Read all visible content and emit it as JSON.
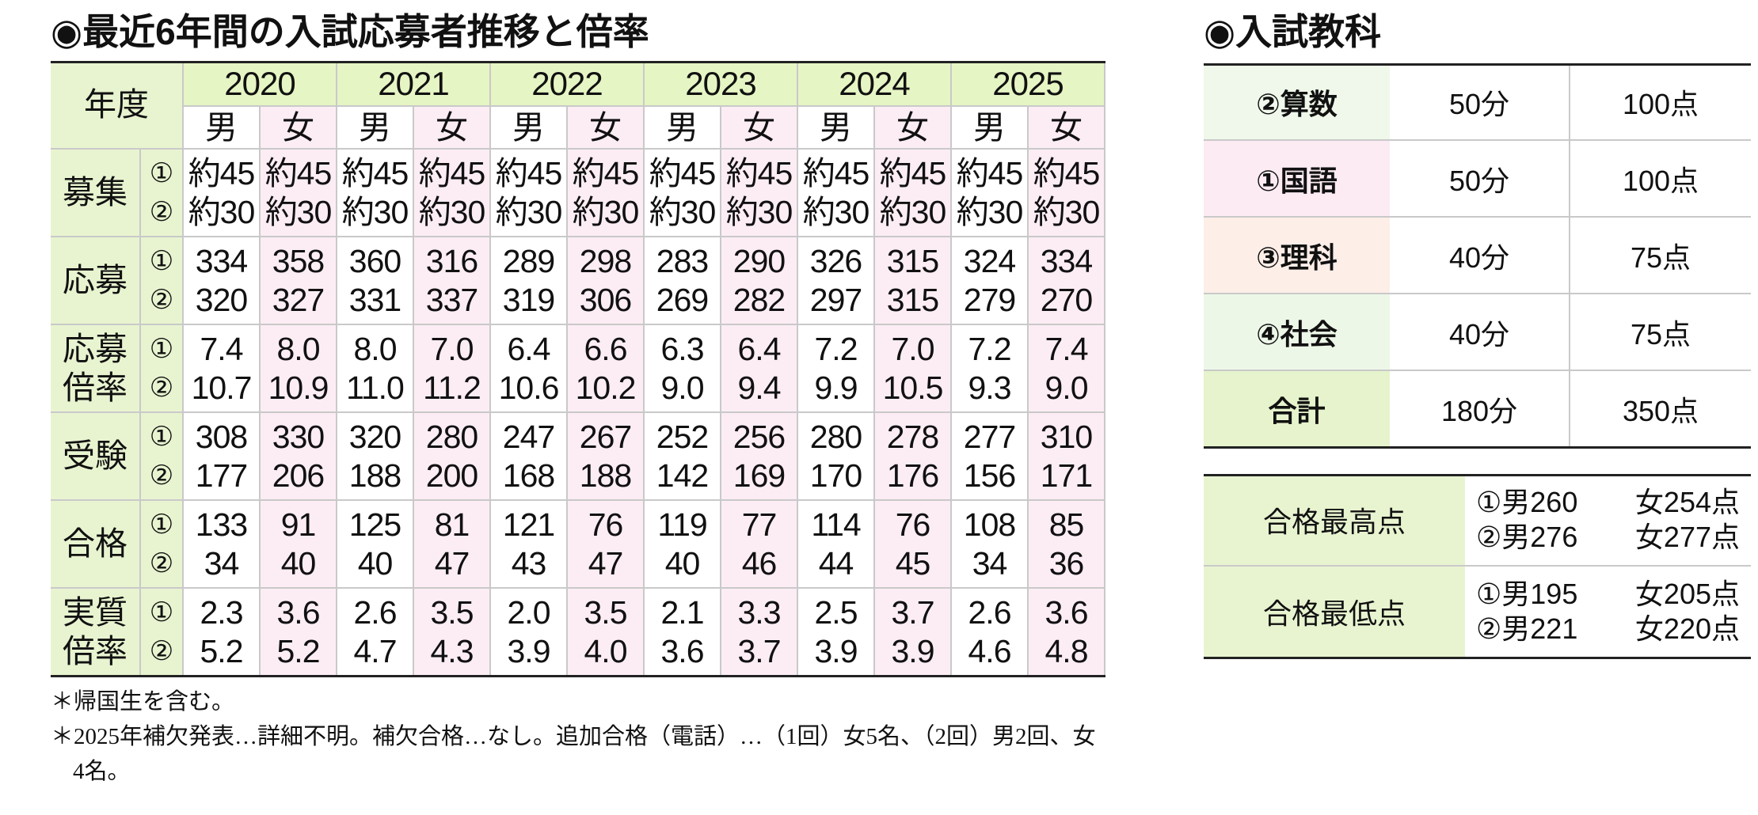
{
  "left": {
    "title": "◉最近6年間の入試応募者推移と倍率",
    "year_header": "年度",
    "years": [
      "2020",
      "2021",
      "2022",
      "2023",
      "2024",
      "2025"
    ],
    "genders": [
      "男",
      "女"
    ],
    "rounds": [
      "①",
      "②"
    ],
    "rows": [
      {
        "label": [
          "募集"
        ],
        "values": [
          [
            "約45",
            "約45",
            "約45",
            "約45",
            "約45",
            "約45",
            "約45",
            "約45",
            "約45",
            "約45",
            "約45",
            "約45"
          ],
          [
            "約30",
            "約30",
            "約30",
            "約30",
            "約30",
            "約30",
            "約30",
            "約30",
            "約30",
            "約30",
            "約30",
            "約30"
          ]
        ]
      },
      {
        "label": [
          "応募"
        ],
        "values": [
          [
            "334",
            "358",
            "360",
            "316",
            "289",
            "298",
            "283",
            "290",
            "326",
            "315",
            "324",
            "334"
          ],
          [
            "320",
            "327",
            "331",
            "337",
            "319",
            "306",
            "269",
            "282",
            "297",
            "315",
            "279",
            "270"
          ]
        ]
      },
      {
        "label": [
          "応募",
          "倍率"
        ],
        "values": [
          [
            "7.4",
            "8.0",
            "8.0",
            "7.0",
            "6.4",
            "6.6",
            "6.3",
            "6.4",
            "7.2",
            "7.0",
            "7.2",
            "7.4"
          ],
          [
            "10.7",
            "10.9",
            "11.0",
            "11.2",
            "10.6",
            "10.2",
            "9.0",
            "9.4",
            "9.9",
            "10.5",
            "9.3",
            "9.0"
          ]
        ]
      },
      {
        "label": [
          "受験"
        ],
        "values": [
          [
            "308",
            "330",
            "320",
            "280",
            "247",
            "267",
            "252",
            "256",
            "280",
            "278",
            "277",
            "310"
          ],
          [
            "177",
            "206",
            "188",
            "200",
            "168",
            "188",
            "142",
            "169",
            "170",
            "176",
            "156",
            "171"
          ]
        ]
      },
      {
        "label": [
          "合格"
        ],
        "values": [
          [
            "133",
            "91",
            "125",
            "81",
            "121",
            "76",
            "119",
            "77",
            "114",
            "76",
            "108",
            "85"
          ],
          [
            "34",
            "40",
            "40",
            "47",
            "43",
            "47",
            "40",
            "46",
            "44",
            "45",
            "34",
            "36"
          ]
        ]
      },
      {
        "label": [
          "実質",
          "倍率"
        ],
        "values": [
          [
            "2.3",
            "3.6",
            "2.6",
            "3.5",
            "2.0",
            "3.5",
            "2.1",
            "3.3",
            "2.5",
            "3.7",
            "2.6",
            "3.6"
          ],
          [
            "5.2",
            "5.2",
            "4.7",
            "4.3",
            "3.9",
            "4.0",
            "3.6",
            "3.7",
            "3.9",
            "3.9",
            "4.6",
            "4.8"
          ]
        ]
      }
    ],
    "notes": [
      "＊帰国生を含む。",
      "＊2025年補欠発表…詳細不明。補欠合格…なし。追加合格（電話）…（1回）女5名、（2回）男2回、女4名。"
    ]
  },
  "right": {
    "title": "◉入試教科",
    "subjects": [
      {
        "name": "②算数",
        "time": "50分",
        "points": "100点",
        "color": "#eff8ea"
      },
      {
        "name": "①国語",
        "time": "50分",
        "points": "100点",
        "color": "#fcebf3"
      },
      {
        "name": "③理科",
        "time": "40分",
        "points": "75点",
        "color": "#fdeee8"
      },
      {
        "name": "④社会",
        "time": "40分",
        "points": "75点",
        "color": "#edf7e8"
      },
      {
        "name": "合計",
        "time": "180分",
        "points": "350点",
        "color": "#e6f3cc"
      }
    ],
    "scores": [
      {
        "label": "合格最高点",
        "lines": [
          [
            "①男260",
            "女254点"
          ],
          [
            "②男276",
            "女277点"
          ]
        ]
      },
      {
        "label": "合格最低点",
        "lines": [
          [
            "①男195",
            "女205点"
          ],
          [
            "②男221",
            "女220点"
          ]
        ]
      }
    ]
  }
}
